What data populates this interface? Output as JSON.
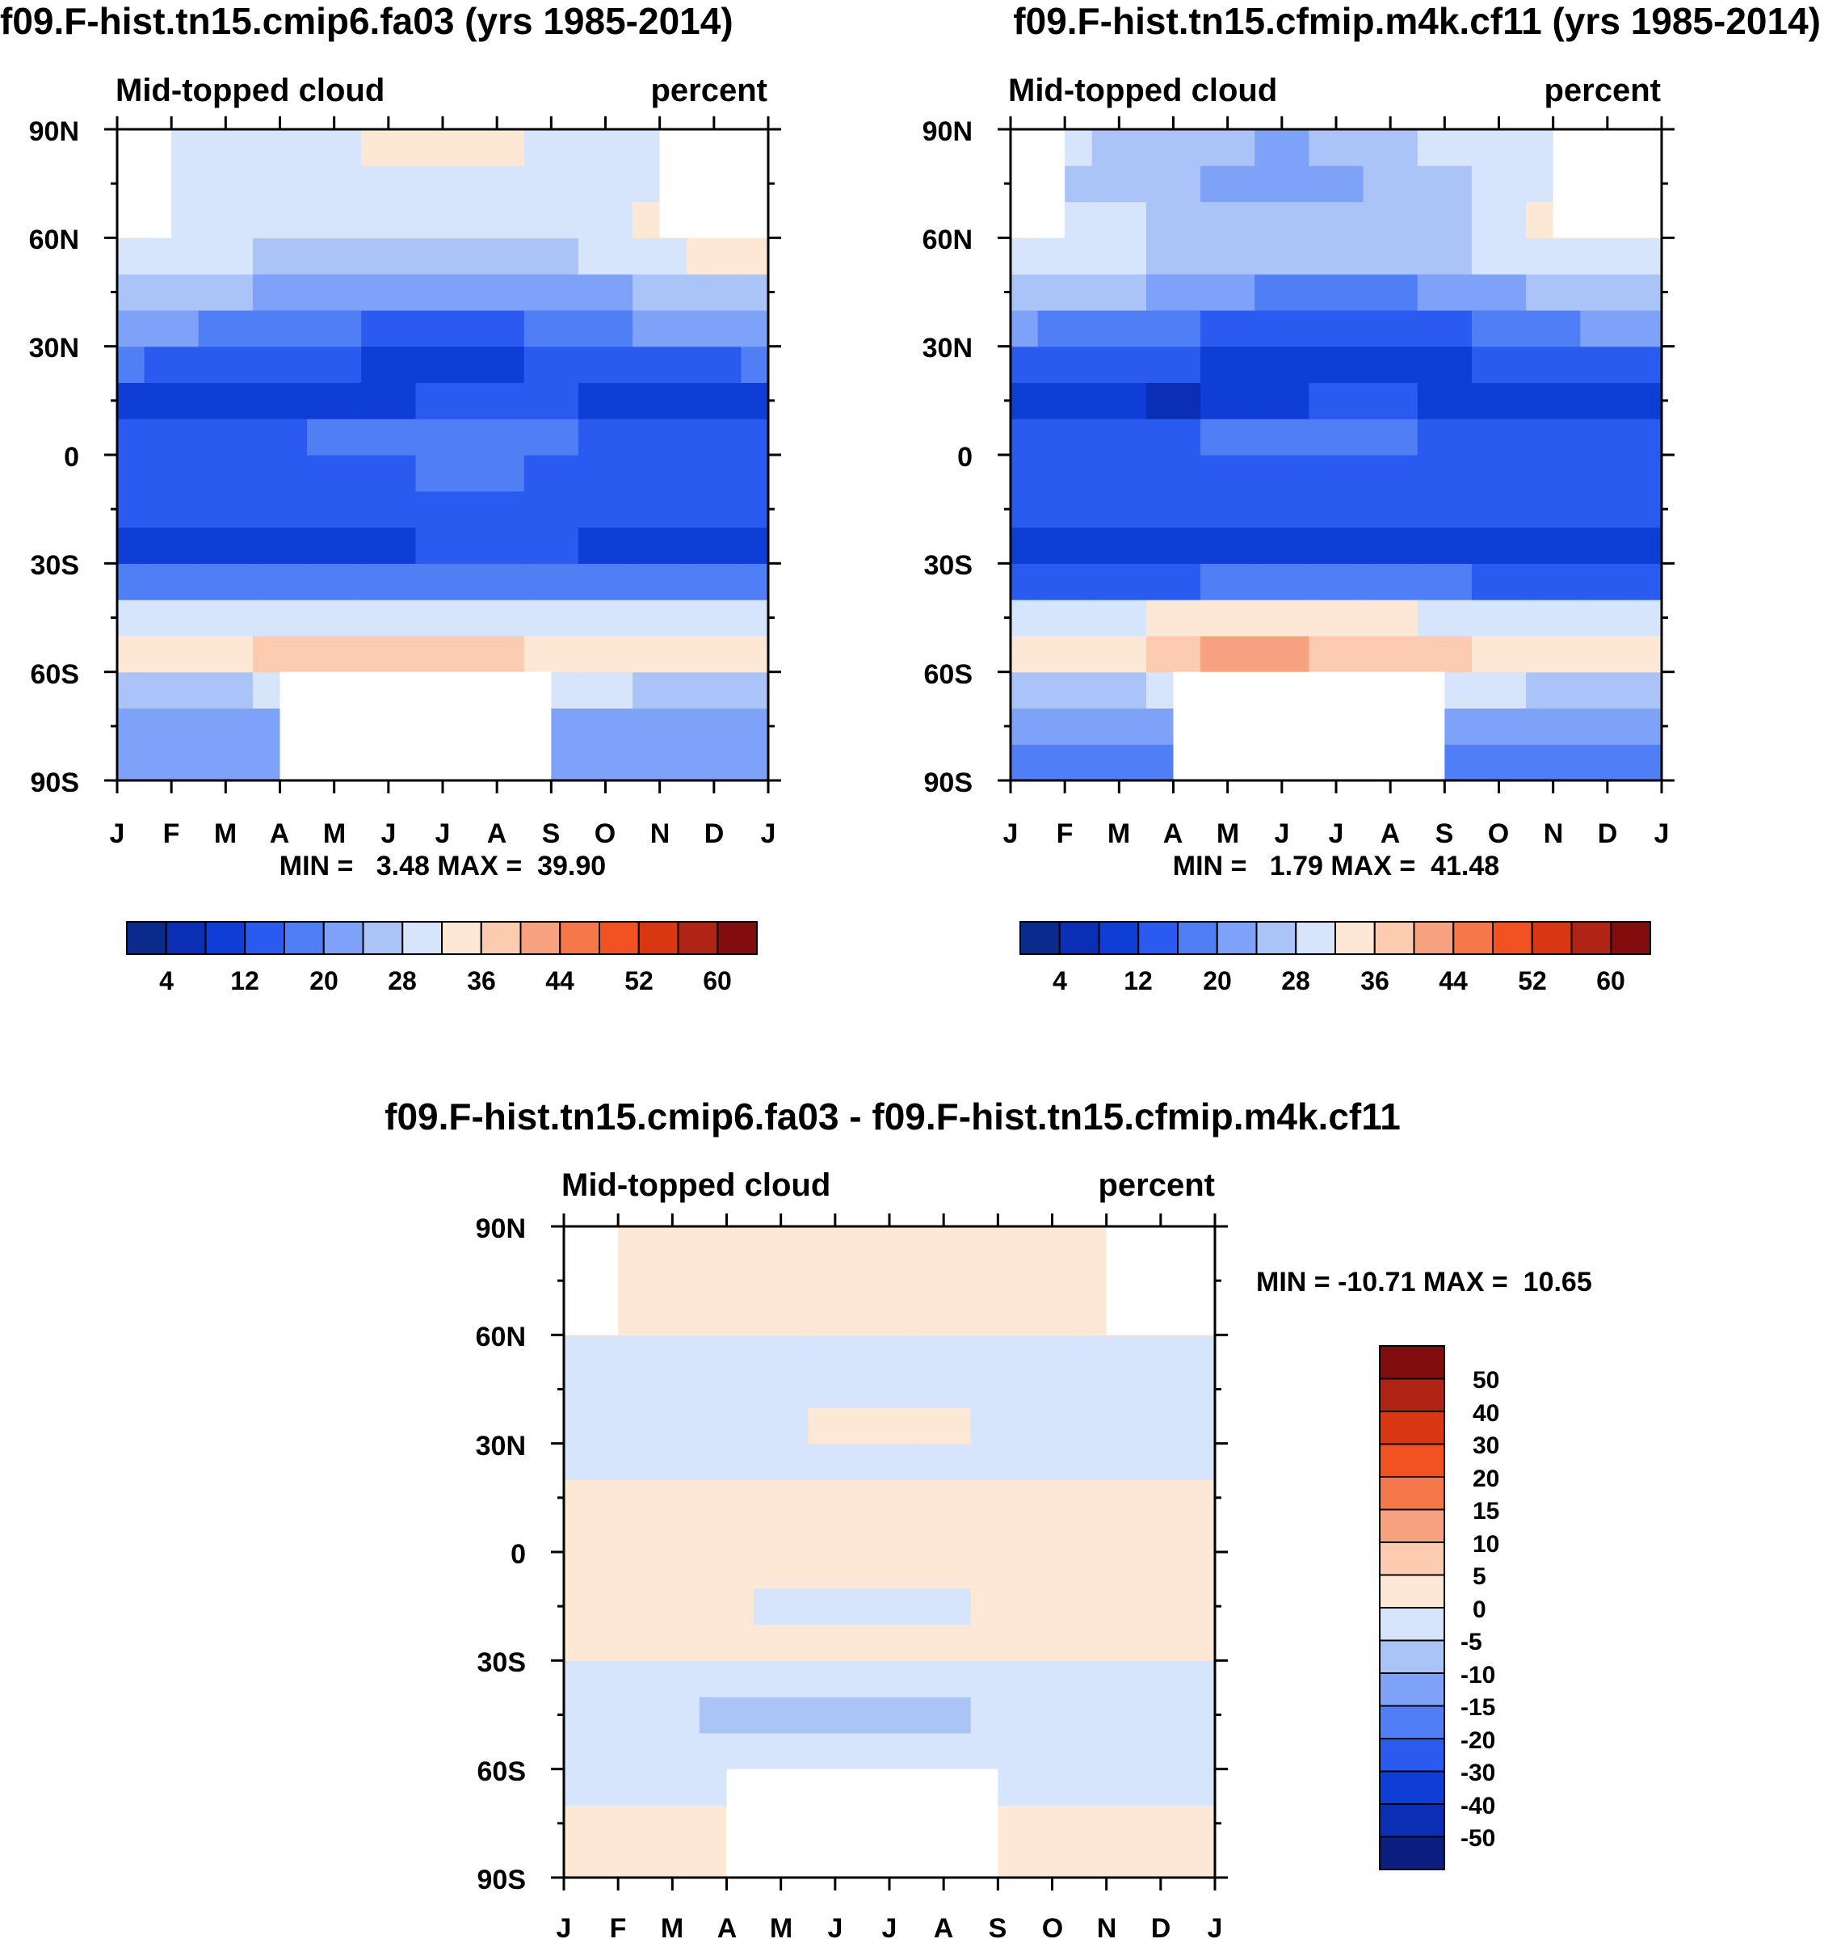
{
  "chart_data": [
    {
      "type": "heatmap",
      "title": "f09.F-hist.tn15.cmip6.fa03 (yrs 1985-2014)",
      "left_label": "Mid-topped cloud",
      "right_label": "percent",
      "x_tick_labels": [
        "J",
        "F",
        "M",
        "A",
        "M",
        "J",
        "J",
        "A",
        "S",
        "O",
        "N",
        "D",
        "J"
      ],
      "y_tick_labels": [
        "90N",
        "60N",
        "30N",
        "0",
        "30S",
        "60S",
        "90S"
      ],
      "xlim": [
        0,
        12
      ],
      "ylim": [
        -90,
        90
      ],
      "min_max_text": "MIN =   3.48 MAX =  39.90",
      "colorbar": {
        "orientation": "horizontal",
        "levels": [
          0,
          4,
          8,
          12,
          16,
          20,
          24,
          28,
          32,
          36,
          40,
          44,
          48,
          52,
          56,
          60,
          64
        ],
        "tick_labels": [
          "4",
          "12",
          "20",
          "28",
          "36",
          "44",
          "52",
          "60"
        ],
        "tick_values": [
          4,
          12,
          20,
          28,
          36,
          44,
          52,
          60
        ]
      },
      "field": {
        "lat_bands": [
          -90,
          -80,
          -70,
          -60,
          -50,
          -40,
          -30,
          -20,
          -10,
          0,
          10,
          20,
          30,
          40,
          50,
          60,
          70,
          80,
          90
        ],
        "month_values": [
          [
            20,
            20,
            20,
            20,
            20,
            20,
            20,
            20,
            20,
            20,
            20,
            20,
            20
          ],
          [
            23,
            23,
            23,
            23,
            23,
            23,
            23,
            23,
            23,
            23,
            23,
            23,
            23
          ],
          [
            27,
            27,
            27,
            28,
            28,
            28,
            28,
            28,
            28,
            28,
            27,
            27,
            27
          ],
          [
            32,
            32,
            34,
            36,
            37,
            37,
            37,
            36,
            34,
            32,
            32,
            32,
            32
          ],
          [
            29,
            29,
            30,
            31,
            31,
            31,
            31,
            31,
            30,
            29,
            29,
            29,
            29
          ],
          [
            16,
            16,
            16,
            16,
            16,
            17,
            17,
            17,
            17,
            16,
            16,
            16,
            16
          ],
          [
            11,
            11,
            11,
            11,
            11,
            11,
            12,
            12,
            12,
            11,
            11,
            11,
            11
          ],
          [
            13,
            13,
            13,
            13,
            14,
            14,
            14,
            14,
            13,
            13,
            13,
            13,
            13
          ],
          [
            14,
            14,
            14,
            14,
            14,
            15,
            16,
            16,
            15,
            14,
            14,
            14,
            14
          ],
          [
            14,
            14,
            14,
            15,
            17,
            19,
            19,
            18,
            16,
            15,
            14,
            14,
            14
          ],
          [
            10,
            10,
            9,
            8,
            10,
            11,
            13,
            13,
            12,
            11,
            10,
            10,
            10
          ],
          [
            16,
            15,
            14,
            13,
            12,
            11,
            11,
            11,
            12,
            13,
            14,
            15,
            16
          ],
          [
            21,
            20,
            19,
            18,
            16,
            15,
            15,
            15,
            16,
            18,
            20,
            21,
            21
          ],
          [
            27,
            26,
            25,
            23,
            21,
            20,
            20,
            20,
            21,
            23,
            25,
            26,
            27
          ],
          [
            31,
            30,
            29,
            27,
            26,
            25,
            25,
            26,
            27,
            29,
            31,
            32,
            32
          ],
          [
            33,
            31,
            30,
            29,
            28,
            28,
            28,
            29,
            30,
            31,
            33,
            34,
            34
          ],
          [
            30,
            29,
            28,
            28,
            28,
            28,
            29,
            30,
            30,
            30,
            31,
            32,
            32
          ],
          [
            30,
            30,
            29,
            29,
            29,
            32,
            34,
            35,
            31,
            30,
            30,
            30,
            30
          ]
        ],
        "missing": [
          {
            "lat": [
              -90,
              -60
            ],
            "months": [
              3,
              8
            ]
          },
          {
            "lat": [
              60,
              90
            ],
            "months": [
              0,
              1
            ]
          },
          {
            "lat": [
              60,
              90
            ],
            "months": [
              10,
              12
            ]
          }
        ]
      }
    },
    {
      "type": "heatmap",
      "title": "f09.F-hist.tn15.cfmip.m4k.cf11 (yrs 1985-2014)",
      "left_label": "Mid-topped cloud",
      "right_label": "percent",
      "x_tick_labels": [
        "J",
        "F",
        "M",
        "A",
        "M",
        "J",
        "J",
        "A",
        "S",
        "O",
        "N",
        "D",
        "J"
      ],
      "y_tick_labels": [
        "90N",
        "60N",
        "30N",
        "0",
        "30S",
        "60S",
        "90S"
      ],
      "xlim": [
        0,
        12
      ],
      "ylim": [
        -90,
        90
      ],
      "min_max_text": "MIN =   1.79 MAX =  41.48",
      "colorbar": {
        "orientation": "horizontal",
        "levels": [
          0,
          4,
          8,
          12,
          16,
          20,
          24,
          28,
          32,
          36,
          40,
          44,
          48,
          52,
          56,
          60,
          64
        ],
        "tick_labels": [
          "4",
          "12",
          "20",
          "28",
          "36",
          "44",
          "52",
          "60"
        ],
        "tick_values": [
          4,
          12,
          20,
          28,
          36,
          44,
          52,
          60
        ]
      },
      "field": {
        "lat_bands": [
          -90,
          -80,
          -70,
          -60,
          -50,
          -40,
          -30,
          -20,
          -10,
          0,
          10,
          20,
          30,
          40,
          50,
          60,
          70,
          80,
          90
        ],
        "month_values": [
          [
            19,
            19,
            19,
            19,
            19,
            19,
            19,
            19,
            19,
            19,
            19,
            19,
            19
          ],
          [
            22,
            22,
            22,
            22,
            22,
            22,
            22,
            22,
            22,
            22,
            22,
            22,
            22
          ],
          [
            27,
            27,
            27,
            28,
            28,
            28,
            28,
            28,
            28,
            28,
            27,
            27,
            27
          ],
          [
            33,
            33,
            35,
            38,
            40,
            40,
            39,
            38,
            36,
            33,
            33,
            33,
            33
          ],
          [
            30,
            30,
            31,
            32,
            33,
            33,
            33,
            32,
            31,
            30,
            30,
            30,
            30
          ],
          [
            15,
            15,
            15,
            15,
            16,
            16,
            16,
            16,
            16,
            15,
            15,
            15,
            15
          ],
          [
            10,
            10,
            10,
            10,
            10,
            11,
            11,
            11,
            11,
            10,
            10,
            10,
            10
          ],
          [
            12,
            12,
            12,
            12,
            13,
            13,
            13,
            13,
            12,
            12,
            12,
            12,
            12
          ],
          [
            13,
            13,
            13,
            13,
            13,
            14,
            15,
            15,
            14,
            13,
            13,
            13,
            13
          ],
          [
            13,
            13,
            13,
            14,
            16,
            18,
            18,
            17,
            15,
            14,
            13,
            13,
            13
          ],
          [
            9,
            9,
            8,
            7,
            9,
            10,
            12,
            12,
            11,
            10,
            9,
            9,
            9
          ],
          [
            15,
            14,
            13,
            12,
            11,
            10,
            10,
            10,
            11,
            12,
            13,
            14,
            15
          ],
          [
            20,
            19,
            18,
            17,
            15,
            14,
            14,
            14,
            15,
            17,
            19,
            20,
            20
          ],
          [
            26,
            25,
            24,
            22,
            20,
            19,
            19,
            19,
            20,
            22,
            24,
            25,
            26
          ],
          [
            30,
            29,
            28,
            26,
            25,
            24,
            24,
            25,
            26,
            28,
            30,
            31,
            31
          ],
          [
            32,
            30,
            29,
            27,
            25,
            24,
            24,
            25,
            27,
            30,
            32,
            33,
            33
          ],
          [
            28,
            27,
            26,
            25,
            22,
            21,
            22,
            24,
            26,
            28,
            29,
            30,
            30
          ],
          [
            28,
            28,
            27,
            26,
            24,
            22,
            24,
            26,
            28,
            29,
            29,
            29,
            29
          ]
        ],
        "missing": [
          {
            "lat": [
              -90,
              -60
            ],
            "months": [
              3,
              8
            ]
          },
          {
            "lat": [
              60,
              90
            ],
            "months": [
              0,
              1
            ]
          },
          {
            "lat": [
              60,
              90
            ],
            "months": [
              10,
              12
            ]
          }
        ]
      }
    },
    {
      "type": "heatmap",
      "title": "f09.F-hist.tn15.cmip6.fa03 - f09.F-hist.tn15.cfmip.m4k.cf11",
      "left_label": "Mid-topped cloud",
      "right_label": "percent",
      "x_tick_labels": [
        "J",
        "F",
        "M",
        "A",
        "M",
        "J",
        "J",
        "A",
        "S",
        "O",
        "N",
        "D",
        "J"
      ],
      "y_tick_labels": [
        "90N",
        "60N",
        "30N",
        "0",
        "30S",
        "60S",
        "90S"
      ],
      "xlim": [
        0,
        12
      ],
      "ylim": [
        -90,
        90
      ],
      "min_max_text": "MIN = -10.71 MAX =  10.65",
      "colorbar": {
        "orientation": "vertical",
        "levels": [
          -60,
          -50,
          -40,
          -30,
          -20,
          -15,
          -10,
          -5,
          0,
          5,
          10,
          15,
          20,
          30,
          40,
          50,
          60
        ],
        "tick_labels": [
          "-50",
          "-40",
          "-30",
          "-20",
          "-15",
          "-10",
          "-5",
          "0",
          "5",
          "10",
          "15",
          "20",
          "30",
          "40",
          "50"
        ],
        "tick_values": [
          -50,
          -40,
          -30,
          -20,
          -15,
          -10,
          -5,
          0,
          5,
          10,
          15,
          20,
          30,
          40,
          50
        ]
      },
      "field": {
        "lat_bands": [
          -90,
          -80,
          -70,
          -60,
          -50,
          -40,
          -30,
          -20,
          -10,
          0,
          10,
          20,
          30,
          40,
          50,
          60,
          70,
          80,
          90
        ],
        "month_values": [
          [
            2,
            2,
            1,
            1,
            1,
            1,
            1,
            1,
            1,
            1,
            1,
            2,
            2
          ],
          [
            1,
            1,
            1,
            1,
            1,
            1,
            1,
            1,
            1,
            1,
            1,
            1,
            1
          ],
          [
            -1,
            -1,
            -1,
            -1,
            -1,
            -1,
            -1,
            -1,
            -1,
            -1,
            -1,
            -1,
            -1
          ],
          [
            -2,
            -2,
            -2,
            -3,
            -3,
            -3,
            -3,
            -3,
            -3,
            -2,
            -2,
            -2,
            -2
          ],
          [
            -2,
            -2,
            -3,
            -6,
            -7,
            -8,
            -8,
            -7,
            -5,
            -3,
            -2,
            -2,
            -2
          ],
          [
            -1,
            -1,
            -2,
            -2,
            -3,
            -3,
            -3,
            -3,
            -2,
            -2,
            -1,
            -1,
            -1
          ],
          [
            1,
            1,
            1,
            1,
            1,
            1,
            1,
            1,
            1,
            1,
            1,
            1,
            1
          ],
          [
            1,
            1,
            1,
            1,
            -1,
            -1,
            -1,
            -1,
            1,
            1,
            1,
            1,
            1
          ],
          [
            1,
            1,
            1,
            1,
            1,
            1,
            1,
            1,
            1,
            1,
            1,
            1,
            1
          ],
          [
            1,
            1,
            1,
            1,
            1,
            1,
            1,
            1,
            1,
            1,
            1,
            1,
            1
          ],
          [
            1,
            1,
            1,
            1,
            1,
            1,
            1,
            1,
            1,
            1,
            1,
            1,
            1
          ],
          [
            -1,
            -1,
            -1,
            -1,
            -1,
            -1,
            -1,
            -1,
            -1,
            -1,
            -1,
            -1,
            -1
          ],
          [
            -2,
            -3,
            -1,
            -1,
            -1,
            1,
            2,
            1,
            -1,
            -1,
            -1,
            -2,
            -2
          ],
          [
            -1,
            -1,
            -1,
            -1,
            -1,
            -1,
            -1,
            -1,
            -1,
            -1,
            -1,
            -1,
            -1
          ],
          [
            -1,
            -1,
            -1,
            -1,
            -1,
            -1,
            -1,
            -1,
            -1,
            -1,
            -1,
            -1,
            -1
          ],
          [
            1,
            1,
            1,
            1,
            1,
            1,
            1,
            1,
            1,
            1,
            1,
            1,
            1
          ],
          [
            1,
            1,
            1,
            1,
            1,
            1,
            1,
            1,
            1,
            1,
            1,
            1,
            1
          ],
          [
            1,
            1,
            2,
            2,
            1,
            2,
            3,
            2,
            1,
            1,
            1,
            1,
            1
          ]
        ],
        "missing": [
          {
            "lat": [
              -90,
              -60
            ],
            "months": [
              3,
              8
            ]
          },
          {
            "lat": [
              60,
              90
            ],
            "months": [
              0,
              1
            ]
          },
          {
            "lat": [
              60,
              90
            ],
            "months": [
              10,
              12
            ]
          }
        ]
      }
    }
  ],
  "palette": {
    "seq16": [
      "#0a2a8c",
      "#0a2fb4",
      "#0f3ed6",
      "#2a5af0",
      "#4f7ef5",
      "#7ea2f7",
      "#abc4f8",
      "#d6e5fb",
      "#fde8d6",
      "#fccbb0",
      "#f8a17f",
      "#f47849",
      "#f25122",
      "#d93612",
      "#b02415",
      "#820d0d"
    ],
    "div16": [
      "#0a1f80",
      "#0a2fb4",
      "#0f3ed6",
      "#2a5af0",
      "#4f7ef5",
      "#7ea2f7",
      "#abc4f8",
      "#d6e5fb",
      "#fde8d6",
      "#fccbb0",
      "#f8a17f",
      "#f47849",
      "#f25122",
      "#d93612",
      "#b02415",
      "#820d0d"
    ],
    "missing": "#ffffff"
  }
}
